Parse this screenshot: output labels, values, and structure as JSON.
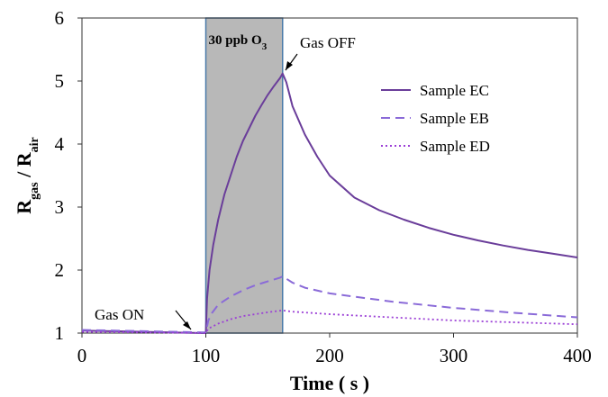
{
  "chart_data": {
    "type": "line",
    "xlabel": "Time ( s )",
    "ylabel": {
      "main": "R",
      "sub1": "gas",
      "sep": " / R",
      "sub2": "air"
    },
    "xlim": [
      0,
      400
    ],
    "ylim": [
      1,
      6
    ],
    "xticks": [
      "0",
      "100",
      "200",
      "300",
      "400"
    ],
    "yticks": [
      "1",
      "2",
      "3",
      "4",
      "5",
      "6"
    ],
    "grid": false,
    "legend_position": "upper-right",
    "shaded_region": {
      "x_start": 100,
      "x_end": 162,
      "color": "#b8b8b8",
      "label_main": "30 ppb O",
      "label_sub": "3"
    },
    "annotations": [
      {
        "text": "Gas ON",
        "x": 100,
        "y": 1.0
      },
      {
        "text": "Gas OFF",
        "x": 162,
        "y": 5.12
      }
    ],
    "series": [
      {
        "name": "Sample EC",
        "color": "#6a3d9a",
        "dash": "solid",
        "points": [
          [
            0,
            1.04
          ],
          [
            50,
            1.02
          ],
          [
            99,
            1.0
          ],
          [
            100,
            1.0
          ],
          [
            101,
            1.55
          ],
          [
            103,
            2.0
          ],
          [
            106,
            2.4
          ],
          [
            110,
            2.8
          ],
          [
            115,
            3.2
          ],
          [
            120,
            3.5
          ],
          [
            125,
            3.8
          ],
          [
            130,
            4.05
          ],
          [
            135,
            4.25
          ],
          [
            140,
            4.45
          ],
          [
            145,
            4.62
          ],
          [
            150,
            4.78
          ],
          [
            155,
            4.92
          ],
          [
            160,
            5.05
          ],
          [
            162,
            5.12
          ],
          [
            165,
            4.98
          ],
          [
            170,
            4.6
          ],
          [
            180,
            4.15
          ],
          [
            190,
            3.8
          ],
          [
            200,
            3.5
          ],
          [
            220,
            3.15
          ],
          [
            240,
            2.95
          ],
          [
            260,
            2.8
          ],
          [
            280,
            2.67
          ],
          [
            300,
            2.56
          ],
          [
            320,
            2.47
          ],
          [
            340,
            2.39
          ],
          [
            360,
            2.32
          ],
          [
            380,
            2.26
          ],
          [
            400,
            2.2
          ]
        ]
      },
      {
        "name": "Sample EB",
        "color": "#8a6ad8",
        "dash": "dashed",
        "points": [
          [
            0,
            1.05
          ],
          [
            50,
            1.03
          ],
          [
            99,
            1.01
          ],
          [
            100,
            1.01
          ],
          [
            102,
            1.2
          ],
          [
            105,
            1.32
          ],
          [
            110,
            1.45
          ],
          [
            120,
            1.58
          ],
          [
            130,
            1.68
          ],
          [
            140,
            1.76
          ],
          [
            150,
            1.82
          ],
          [
            160,
            1.88
          ],
          [
            162,
            1.9
          ],
          [
            170,
            1.8
          ],
          [
            180,
            1.72
          ],
          [
            200,
            1.63
          ],
          [
            250,
            1.5
          ],
          [
            300,
            1.4
          ],
          [
            350,
            1.32
          ],
          [
            400,
            1.25
          ]
        ]
      },
      {
        "name": "Sample ED",
        "color": "#9b3fd6",
        "dash": "dotted",
        "points": [
          [
            0,
            1.02
          ],
          [
            50,
            1.01
          ],
          [
            99,
            1.0
          ],
          [
            100,
            1.0
          ],
          [
            102,
            1.07
          ],
          [
            110,
            1.15
          ],
          [
            120,
            1.22
          ],
          [
            130,
            1.27
          ],
          [
            140,
            1.3
          ],
          [
            150,
            1.33
          ],
          [
            162,
            1.36
          ],
          [
            170,
            1.34
          ],
          [
            200,
            1.3
          ],
          [
            250,
            1.25
          ],
          [
            300,
            1.2
          ],
          [
            350,
            1.17
          ],
          [
            400,
            1.14
          ]
        ]
      }
    ]
  }
}
